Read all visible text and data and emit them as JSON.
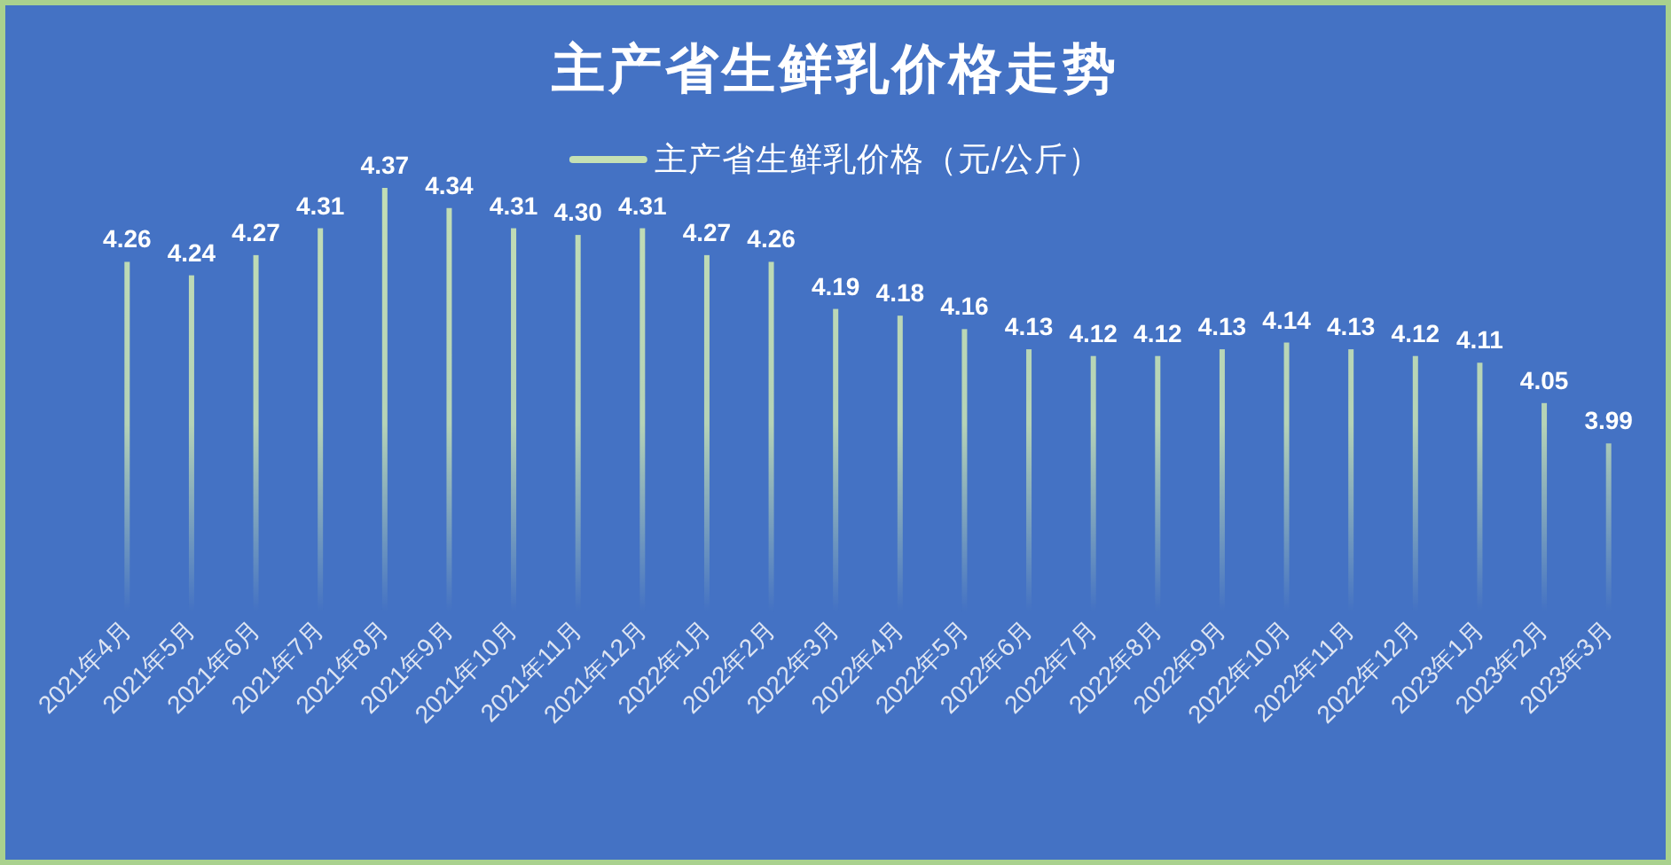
{
  "chart_data": {
    "type": "bar",
    "title": "主产省生鲜乳价格走势",
    "categories": [
      "2021年4月",
      "2021年5月",
      "2021年6月",
      "2021年7月",
      "2021年8月",
      "2021年9月",
      "2021年10月",
      "2021年11月",
      "2021年12月",
      "2022年1月",
      "2022年2月",
      "2022年3月",
      "2022年4月",
      "2022年5月",
      "2022年6月",
      "2022年7月",
      "2022年8月",
      "2022年9月",
      "2022年10月",
      "2022年11月",
      "2022年12月",
      "2023年1月",
      "2023年2月",
      "2023年3月"
    ],
    "series": [
      {
        "name": "主产省生鲜乳价格（元/公斤）",
        "color": "#c5e0b4",
        "values": [
          4.26,
          4.24,
          4.27,
          4.31,
          4.37,
          4.34,
          4.31,
          4.3,
          4.31,
          4.27,
          4.26,
          4.19,
          4.18,
          4.16,
          4.13,
          4.12,
          4.12,
          4.13,
          4.14,
          4.13,
          4.12,
          4.11,
          4.05,
          3.99
        ],
        "value_labels": [
          "4.26",
          "4.24",
          "4.27",
          "4.31",
          "4.37",
          "4.34",
          "4.31",
          "4.30",
          "4.31",
          "4.27",
          "4.26",
          "4.19",
          "4.18",
          "4.16",
          "4.13",
          "4.12",
          "4.12",
          "4.13",
          "4.14",
          "4.13",
          "4.12",
          "4.11",
          "4.05",
          "3.99"
        ]
      }
    ],
    "ylim": [
      3.74,
      4.37
    ],
    "tick_labels": "x",
    "legend": "top"
  }
}
